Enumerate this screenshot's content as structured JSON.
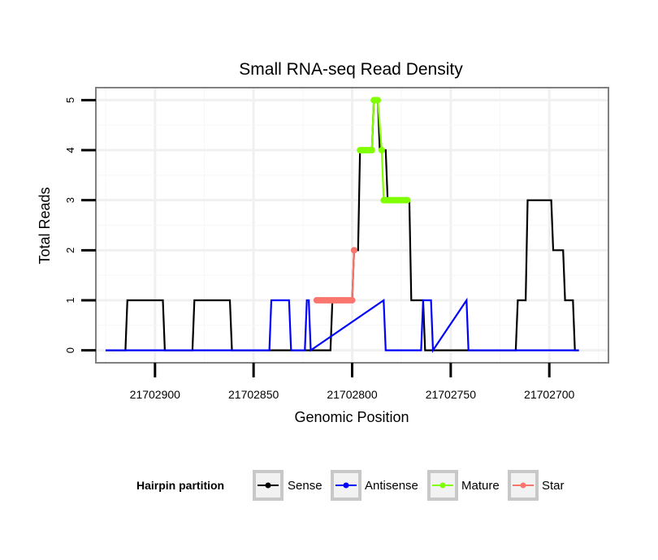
{
  "chart_data": {
    "type": "line",
    "title": "Small RNA-seq Read Density",
    "xlabel": "Genomic Position",
    "ylabel": "Total Reads",
    "x_reversed": true,
    "xlim": [
      21702930,
      21702670
    ],
    "ylim": [
      -0.25,
      5.25
    ],
    "x_ticks": [
      21702900,
      21702850,
      21702800,
      21702750,
      21702700
    ],
    "x_tick_labels": [
      "21702900",
      "21702850",
      "21702800",
      "21702750",
      "21702700"
    ],
    "y_ticks": [
      0,
      1,
      2,
      3,
      4,
      5
    ],
    "y_tick_labels": [
      "0",
      "1",
      "2",
      "3",
      "4",
      "5"
    ],
    "grid": true,
    "legend": {
      "title": "Hairpin partition",
      "position": "bottom",
      "entries": [
        "Sense",
        "Antisense",
        "Mature",
        "Star"
      ]
    },
    "series": [
      {
        "name": "Sense",
        "color": "#000000",
        "markers": false,
        "x": [
          21702925,
          21702915,
          21702914,
          21702896,
          21702895,
          21702881,
          21702880,
          21702862,
          21702861,
          21702811,
          21702810,
          21702800,
          21702799,
          21702797,
          21702796,
          21702790,
          21702789,
          21702787,
          21702786,
          21702783,
          21702782,
          21702781,
          21702780,
          21702771,
          21702770,
          21702764,
          21702763,
          21702758,
          21702757,
          21702735,
          21702734,
          21702717,
          21702716,
          21702712,
          21702711,
          21702699,
          21702698,
          21702693,
          21702692,
          21702688,
          21702687,
          21702685
        ],
        "y": [
          0,
          0,
          1,
          1,
          0,
          0,
          1,
          1,
          0,
          0,
          1,
          1,
          2,
          2,
          4,
          4,
          5,
          5,
          4,
          4,
          3,
          3,
          3,
          3,
          1,
          1,
          0,
          0,
          0,
          0,
          0,
          0,
          1,
          1,
          3,
          3,
          2,
          2,
          1,
          1,
          0,
          0
        ]
      },
      {
        "name": "Antisense",
        "color": "#0000ff",
        "markers": false,
        "x": [
          21702925,
          21702862,
          21702861,
          21702842,
          21702841,
          21702832,
          21702831,
          21702824,
          21702823,
          21702822,
          21702821,
          21702784,
          21702783,
          21702765,
          21702764,
          21702760,
          21702759,
          21702742,
          21702741,
          21702685
        ],
        "y": [
          0,
          0,
          0,
          0,
          1,
          1,
          0,
          0,
          1,
          1,
          0,
          1,
          0,
          0,
          1,
          1,
          0,
          1,
          0,
          0
        ]
      },
      {
        "name": "Mature",
        "color": "#7fff00",
        "markers": true,
        "x": [
          21702796,
          21702795,
          21702794,
          21702793,
          21702792,
          21702791,
          21702790,
          21702789,
          21702788,
          21702787,
          21702785,
          21702784,
          21702783,
          21702782,
          21702781,
          21702780,
          21702779,
          21702778,
          21702777,
          21702776,
          21702775,
          21702774,
          21702773,
          21702772
        ],
        "y": [
          4,
          4,
          4,
          4,
          4,
          4,
          4,
          5,
          5,
          5,
          4,
          3,
          3,
          3,
          3,
          3,
          3,
          3,
          3,
          3,
          3,
          3,
          3,
          3
        ]
      },
      {
        "name": "Star",
        "color": "#f8766d",
        "markers": true,
        "x": [
          21702818,
          21702817,
          21702816,
          21702815,
          21702814,
          21702813,
          21702812,
          21702811,
          21702810,
          21702809,
          21702808,
          21702807,
          21702806,
          21702805,
          21702804,
          21702803,
          21702802,
          21702801,
          21702800,
          21702799
        ],
        "y": [
          1,
          1,
          1,
          1,
          1,
          1,
          1,
          1,
          1,
          1,
          1,
          1,
          1,
          1,
          1,
          1,
          1,
          1,
          1,
          2
        ]
      }
    ]
  }
}
